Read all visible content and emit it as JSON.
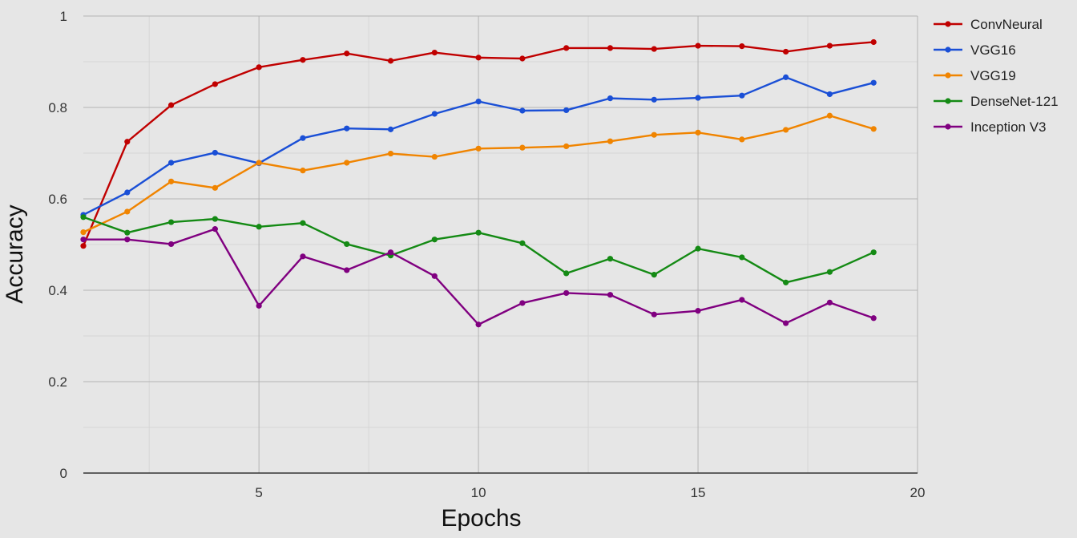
{
  "chart_data": {
    "type": "line",
    "title": "",
    "xlabel": "Epochs",
    "ylabel": "Accuracy",
    "xlim": [
      1,
      20
    ],
    "ylim": [
      0,
      1
    ],
    "x_ticks": [
      5,
      10,
      15,
      20
    ],
    "y_ticks": [
      0,
      0.2,
      0.4,
      0.6,
      0.8,
      1
    ],
    "x_tick_labels": [
      "5",
      "10",
      "15",
      "20"
    ],
    "y_tick_labels": [
      "0",
      "0.2",
      "0.4",
      "0.6",
      "0.8",
      "1"
    ],
    "x_minor_ticks": [
      2.5,
      7.5,
      12.5,
      17.5
    ],
    "y_minor_ticks": [
      0.1,
      0.3,
      0.5,
      0.7,
      0.9
    ],
    "grid": true,
    "legend_position": "right",
    "x": [
      1,
      2,
      3,
      4,
      5,
      6,
      7,
      8,
      9,
      10,
      11,
      12,
      13,
      14,
      15,
      16,
      17,
      18,
      19
    ],
    "series": [
      {
        "name": "ConvNeural",
        "color": "#c00000",
        "values": [
          0.497,
          0.725,
          0.805,
          0.851,
          0.888,
          0.904,
          0.918,
          0.902,
          0.92,
          0.909,
          0.907,
          0.93,
          0.93,
          0.928,
          0.935,
          0.934,
          0.922,
          0.935,
          0.943
        ]
      },
      {
        "name": "VGG16",
        "color": "#1a4fd6",
        "values": [
          0.565,
          0.614,
          0.679,
          0.701,
          0.678,
          0.733,
          0.754,
          0.752,
          0.786,
          0.813,
          0.793,
          0.794,
          0.82,
          0.817,
          0.821,
          0.826,
          0.866,
          0.829,
          0.854
        ]
      },
      {
        "name": "VGG19",
        "color": "#f08400",
        "values": [
          0.527,
          0.572,
          0.638,
          0.624,
          0.679,
          0.662,
          0.679,
          0.699,
          0.692,
          0.71,
          0.712,
          0.715,
          0.726,
          0.74,
          0.745,
          0.73,
          0.751,
          0.782,
          0.753
        ]
      },
      {
        "name": "DenseNet-121",
        "color": "#148a14",
        "values": [
          0.56,
          0.526,
          0.549,
          0.556,
          0.539,
          0.547,
          0.501,
          0.476,
          0.511,
          0.526,
          0.503,
          0.437,
          0.469,
          0.434,
          0.491,
          0.472,
          0.417,
          0.44,
          0.483
        ]
      },
      {
        "name": "Inception V3",
        "color": "#800080",
        "values": [
          0.511,
          0.511,
          0.501,
          0.534,
          0.366,
          0.474,
          0.444,
          0.483,
          0.431,
          0.325,
          0.372,
          0.394,
          0.39,
          0.347,
          0.355,
          0.379,
          0.328,
          0.373,
          0.339
        ]
      }
    ]
  }
}
